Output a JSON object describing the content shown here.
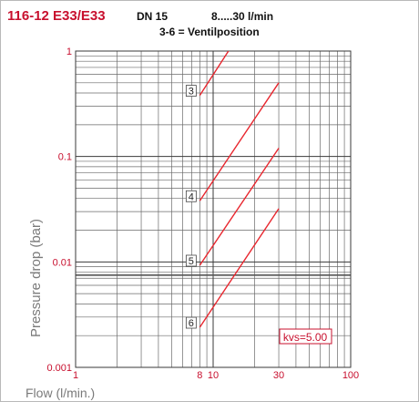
{
  "header": {
    "model": "116-12 E33/E33",
    "size": "DN 15",
    "flow_range": "8.....30 l/min",
    "legend_note": "3-6 = Ventilposition"
  },
  "chart_data": {
    "type": "line",
    "xscale": "log",
    "yscale": "log",
    "xlim": [
      1,
      100
    ],
    "ylim": [
      0.001,
      1
    ],
    "xlabel": "Flow (l/min.)",
    "ylabel": "Pressure drop (bar)",
    "xticks": [
      {
        "value": 1,
        "label": "1",
        "color": "#c8102e"
      },
      {
        "value": 8,
        "label": "8",
        "color": "#c8102e"
      },
      {
        "value": 10,
        "label": "10",
        "color": "#c8102e"
      },
      {
        "value": 30,
        "label": "30",
        "color": "#c8102e"
      },
      {
        "value": 100,
        "label": "100",
        "color": "#c8102e"
      }
    ],
    "yticks": [
      {
        "value": 1,
        "label": "1"
      },
      {
        "value": 0.1,
        "label": "0.1"
      },
      {
        "value": 0.01,
        "label": "0.01"
      },
      {
        "value": 0.001,
        "label": "0.001"
      }
    ],
    "grid": true,
    "series": [
      {
        "name": "3",
        "x": [
          8,
          23
        ],
        "y": [
          0.38,
          3.2
        ]
      },
      {
        "name": "4",
        "x": [
          8,
          30
        ],
        "y": [
          0.038,
          0.5
        ]
      },
      {
        "name": "5",
        "x": [
          8,
          30
        ],
        "y": [
          0.0093,
          0.12
        ]
      },
      {
        "name": "6",
        "x": [
          8,
          30
        ],
        "y": [
          0.0024,
          0.032
        ]
      }
    ],
    "reference_line": {
      "y": 0.0075
    },
    "annotation": "kvs=5.00",
    "line_color": "#e8262e",
    "accent_color": "#c8102e",
    "axis_color": "#7a7a7a"
  }
}
